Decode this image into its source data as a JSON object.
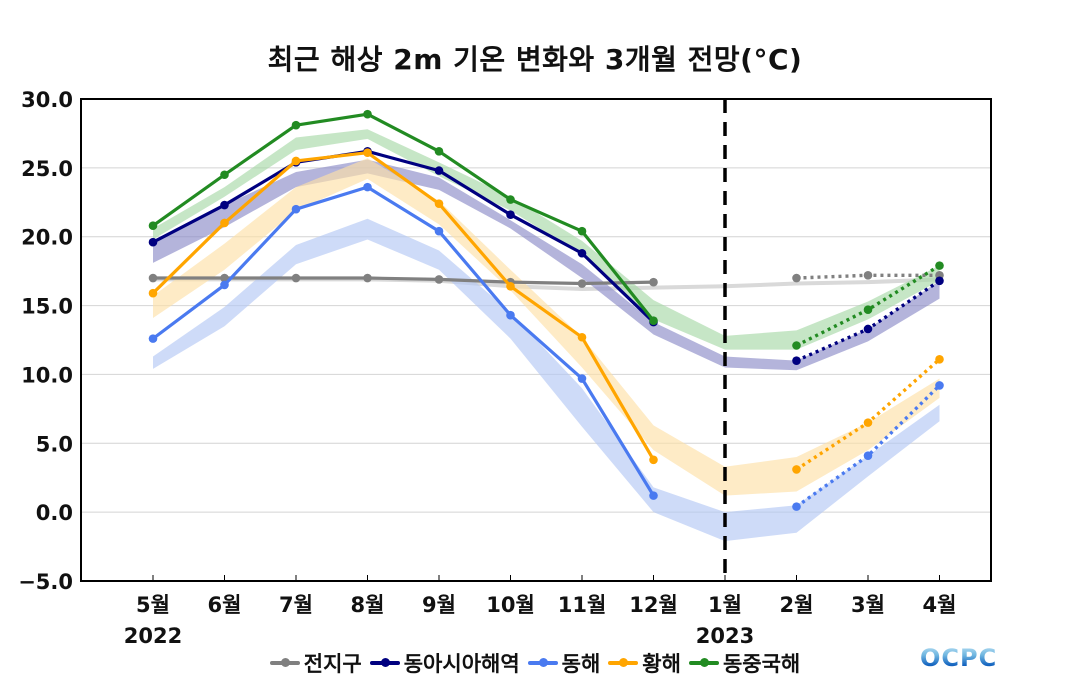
{
  "chart_data": {
    "type": "line",
    "title": "최근 해상 2m 기온 변화와 3개월 전망(°C)",
    "xlabel": "",
    "ylabel": "",
    "ylim": [
      -5.0,
      30.0
    ],
    "yticks": [
      -5.0,
      0.0,
      5.0,
      10.0,
      15.0,
      20.0,
      25.0,
      30.0
    ],
    "ytick_labels": [
      "−5.0",
      "0.0",
      "5.0",
      "10.0",
      "15.0",
      "20.0",
      "25.0",
      "30.0"
    ],
    "grid": "horizontal",
    "categories": [
      "5월",
      "6월",
      "7월",
      "8월",
      "9월",
      "10월",
      "11월",
      "12월",
      "1월",
      "2월",
      "3월",
      "4월"
    ],
    "year_labels": [
      {
        "index": 0,
        "label": "2022"
      },
      {
        "index": 8,
        "label": "2023"
      }
    ],
    "divider_at_index": 8,
    "observed_until_index": 7,
    "forecast_from_index": 9,
    "legend_position": "bottom",
    "series": [
      {
        "name": "전지구",
        "color": "#808080",
        "band_color": "#d9d9d9",
        "values": [
          17.0,
          17.0,
          17.0,
          17.0,
          16.9,
          16.7,
          16.6,
          16.7,
          null,
          17.0,
          17.2,
          17.2
        ],
        "climatology": [
          16.9,
          16.9,
          16.9,
          16.9,
          16.8,
          16.4,
          16.2,
          16.3,
          16.4,
          16.6,
          16.7,
          16.9
        ]
      },
      {
        "name": "동아시아해역",
        "color": "#000080",
        "band_color": "#8c8cc8",
        "values": [
          19.6,
          22.3,
          25.4,
          26.2,
          24.8,
          21.6,
          18.8,
          13.8,
          null,
          11.0,
          13.3,
          16.8
        ],
        "band_upper": [
          19.6,
          22.3,
          24.7,
          25.6,
          24.3,
          21.2,
          18.0,
          13.8,
          11.3,
          11.0,
          13.3,
          16.8
        ],
        "band_lower": [
          18.1,
          20.7,
          23.6,
          24.6,
          23.4,
          20.6,
          17.0,
          12.9,
          10.5,
          10.3,
          12.4,
          15.5
        ]
      },
      {
        "name": "동해",
        "color": "#4a7af0",
        "band_color": "#b4c8f5",
        "values": [
          12.6,
          16.5,
          22.0,
          23.6,
          20.4,
          14.3,
          9.7,
          1.2,
          null,
          0.4,
          4.1,
          9.2
        ],
        "band_upper": [
          11.3,
          14.9,
          19.4,
          21.3,
          19.0,
          14.5,
          9.0,
          1.8,
          0.0,
          0.5,
          4.1,
          7.8
        ],
        "band_lower": [
          10.4,
          13.5,
          18.0,
          19.8,
          17.6,
          12.6,
          6.2,
          0.0,
          -2.1,
          -1.5,
          2.6,
          6.6
        ]
      },
      {
        "name": "황해",
        "color": "#ffa500",
        "band_color": "#fde0a8",
        "values": [
          15.9,
          21.0,
          25.5,
          26.1,
          22.4,
          16.4,
          12.7,
          3.8,
          null,
          3.1,
          6.5,
          11.1
        ],
        "band_upper": [
          15.7,
          19.5,
          23.6,
          25.7,
          22.6,
          17.6,
          12.7,
          6.3,
          3.3,
          4.0,
          6.5,
          9.7
        ],
        "band_lower": [
          14.1,
          17.6,
          21.9,
          24.2,
          20.9,
          16.1,
          10.5,
          4.5,
          1.2,
          1.5,
          4.5,
          8.3
        ]
      },
      {
        "name": "동중국해",
        "color": "#228b22",
        "band_color": "#a8d8a8",
        "values": [
          20.8,
          24.5,
          28.1,
          28.9,
          26.2,
          22.7,
          20.4,
          13.9,
          null,
          12.1,
          14.7,
          17.9
        ],
        "band_upper": [
          20.6,
          23.6,
          27.2,
          27.8,
          25.4,
          22.9,
          19.7,
          15.4,
          12.8,
          13.2,
          15.3,
          17.9
        ],
        "band_lower": [
          19.8,
          22.9,
          26.3,
          27.1,
          24.4,
          21.9,
          18.7,
          14.0,
          11.8,
          11.8,
          14.0,
          16.8
        ]
      }
    ]
  },
  "legend": {
    "items": [
      {
        "label": "전지구",
        "color": "#808080"
      },
      {
        "label": "동아시아해역",
        "color": "#000080"
      },
      {
        "label": "동해",
        "color": "#4a7af0"
      },
      {
        "label": "황해",
        "color": "#ffa500"
      },
      {
        "label": "동중국해",
        "color": "#228b22"
      }
    ]
  },
  "logo": {
    "text": "OCPC"
  }
}
